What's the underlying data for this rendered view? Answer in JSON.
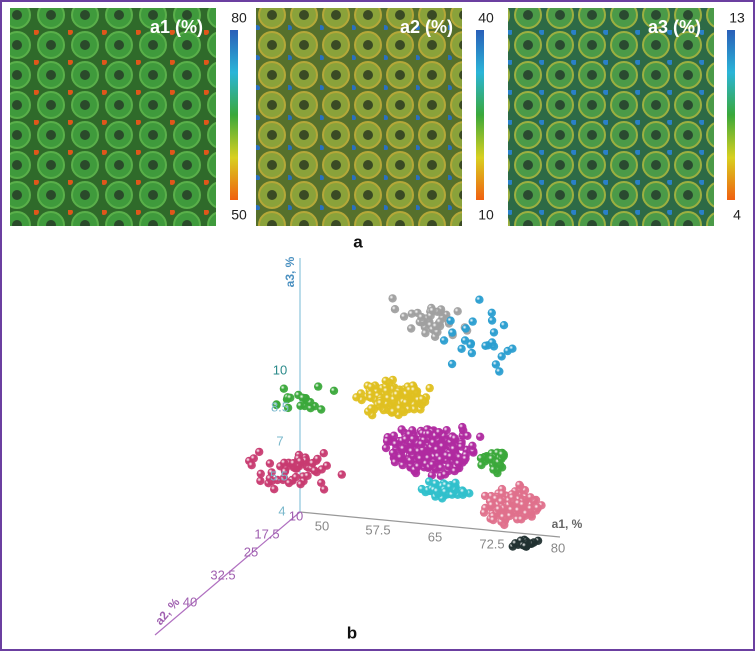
{
  "figure": {
    "panels": [
      {
        "label": "a1 (%)",
        "colorbar": {
          "max": "80",
          "min": "50"
        }
      },
      {
        "label": "a2 (%)",
        "colorbar": {
          "max": "40",
          "min": "10"
        }
      },
      {
        "label": "a3 (%)",
        "colorbar": {
          "max": "13",
          "min": "4"
        }
      }
    ],
    "panel_a_label": "a",
    "scatter": {
      "a1_axis": {
        "title": "a1, %",
        "ticks": [
          "50",
          "57.5",
          "65",
          "72.5",
          "80"
        ]
      },
      "a2_axis": {
        "title": "a2, %",
        "ticks": [
          "10",
          "17.5",
          "25",
          "32.5",
          "40"
        ]
      },
      "a3_axis": {
        "title": "a3, %",
        "ticks": [
          "4",
          "5.5",
          "7",
          "8.5",
          "10"
        ]
      }
    },
    "panel_b_label": "b"
  }
}
